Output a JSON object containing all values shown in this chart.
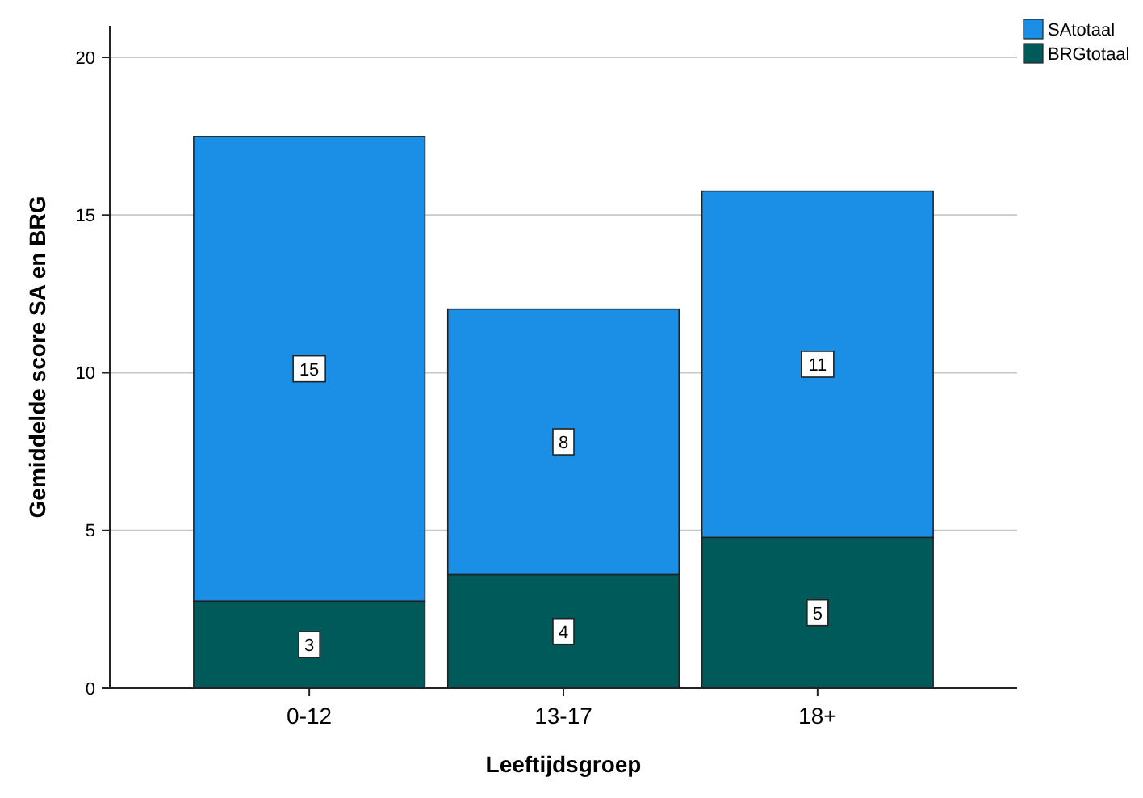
{
  "chart_data": {
    "type": "bar",
    "stacked": true,
    "xlabel": "Leeftijdsgroep",
    "ylabel": "Gemiddelde score SA en BRG",
    "categories": [
      "0-12",
      "13-17",
      "18+"
    ],
    "series": [
      {
        "name": "BRGtotaal",
        "color": "#005a5a",
        "values": [
          2.76,
          3.6,
          4.78
        ],
        "value_labels": [
          "3",
          "4",
          "5"
        ]
      },
      {
        "name": "SAtotaal",
        "color": "#1b8fe6",
        "values": [
          14.73,
          8.42,
          10.98
        ],
        "value_labels": [
          "15",
          "8",
          "11"
        ]
      }
    ],
    "ylim": [
      0,
      21
    ],
    "yticks": [
      0,
      5,
      10,
      15,
      20
    ],
    "grid": "y",
    "legend": "top right"
  }
}
